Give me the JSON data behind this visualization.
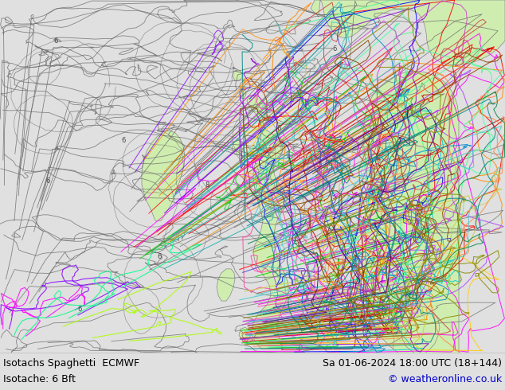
{
  "title_left": "Isotachs Spaghetti  ECMWF",
  "subtitle_left": "Isotache: 6 Bft",
  "title_right": "Sa 01-06-2024 18:00 UTC (18+144)",
  "subtitle_right": "© weatheronline.co.uk",
  "bg_color": "#e0e0e0",
  "land_color": "#d0edb0",
  "sea_color": "#e0e0e0",
  "footer_bg": "#d8d8d8",
  "title_fontsize": 9.0,
  "copyright_color": "#0000cc",
  "text_color": "#000000",
  "fig_width": 6.34,
  "fig_height": 4.9,
  "dpi": 100
}
